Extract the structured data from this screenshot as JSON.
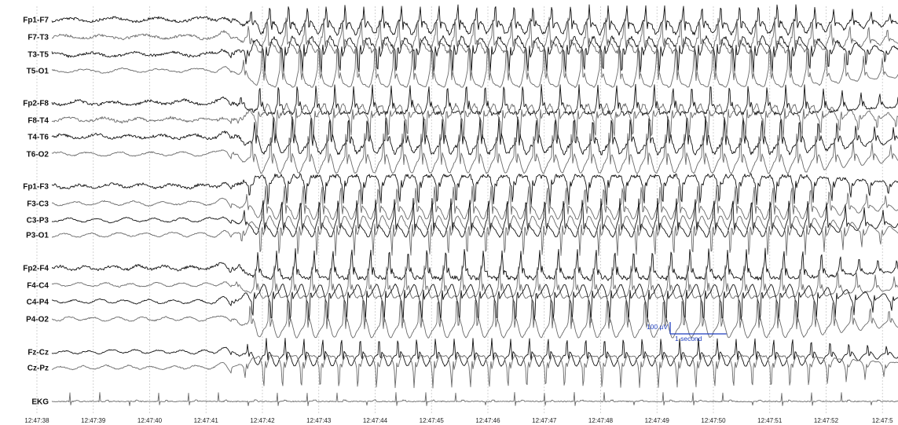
{
  "chart_data": {
    "type": "line",
    "channels": [
      "Fp1-F7",
      "F7-T3",
      "T3-T5",
      "T5-O1",
      "Fp2-F8",
      "F8-T4",
      "T4-T6",
      "T6-O2",
      "Fp1-F3",
      "F3-C3",
      "C3-P3",
      "P3-O1",
      "Fp2-F4",
      "F4-C4",
      "C4-P4",
      "P4-O2",
      "Fz-Cz",
      "Cz-Pz",
      "EKG"
    ],
    "time_labels": [
      "12:47:38",
      "12:47:39",
      "12:47:40",
      "12:47:41",
      "12:47:42",
      "12:47:43",
      "12:47:44",
      "12:47:45",
      "12:47:46",
      "12:47:47",
      "12:47:48",
      "12:47:49",
      "12:47:50",
      "12:47:51",
      "12:47:52",
      "12:47:5"
    ],
    "x_range_seconds": [
      0,
      15.3
    ],
    "seizure_onset_seconds": 3.45,
    "spike_wave_rate_hz": 3,
    "ekg_rate_hz": 1.9,
    "grid": true,
    "scale_bar": {
      "amplitude_label": "100 µV",
      "time_label": "1 second",
      "color": "#1f3fbf"
    },
    "trace_colors": {
      "dark": "#111111",
      "gray": "#6a6a6a"
    }
  }
}
